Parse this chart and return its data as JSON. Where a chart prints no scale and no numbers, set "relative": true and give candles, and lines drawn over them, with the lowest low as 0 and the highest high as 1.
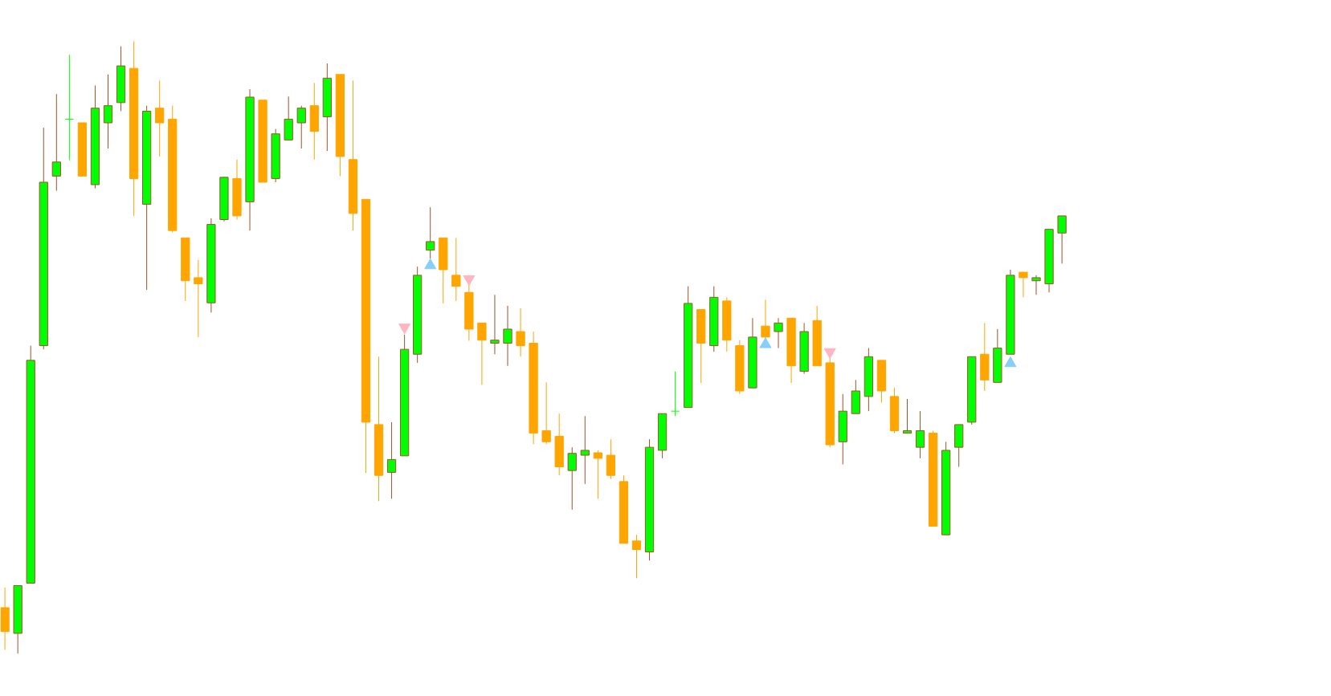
{
  "chart_data": {
    "type": "candlestick",
    "relative": true,
    "categories": [
      null,
      null,
      null,
      null,
      null,
      null,
      null,
      null,
      null,
      null,
      null,
      null,
      null,
      null,
      null,
      null,
      null,
      null,
      null,
      null,
      null,
      null,
      null,
      null,
      null,
      null,
      null,
      null,
      null,
      null,
      null,
      null,
      null,
      null,
      null,
      null,
      null,
      null,
      null,
      null,
      null,
      null,
      null,
      null,
      null,
      null,
      null,
      null,
      null,
      null,
      null,
      null,
      null,
      null,
      null,
      null,
      null,
      null,
      null,
      null,
      null,
      null,
      null,
      null,
      null,
      null,
      null,
      null,
      null,
      null,
      null,
      null,
      null,
      null,
      null,
      null,
      null,
      null,
      null,
      null,
      null,
      null,
      null
    ],
    "ohlc": [
      [
        0.075,
        0.108,
        0.006,
        0.036
      ],
      [
        0.033,
        0.111,
        0,
        0.111
      ],
      [
        0.115,
        0.503,
        0.115,
        0.479
      ],
      [
        0.503,
        0.859,
        0.497,
        0.77
      ],
      [
        0.78,
        0.914,
        0.756,
        0.803
      ],
      [
        0.873,
        0.978,
        0.806,
        0.873
      ],
      [
        0.867,
        0.867,
        0.78,
        0.78
      ],
      [
        0.766,
        0.928,
        0.76,
        0.891
      ],
      [
        0.867,
        0.946,
        0.825,
        0.895
      ],
      [
        0.9,
        0.992,
        0.886,
        0.96
      ],
      [
        0.956,
        1,
        0.715,
        0.776
      ],
      [
        0.734,
        0.895,
        0.594,
        0.886
      ],
      [
        0.891,
        0.936,
        0.812,
        0.867
      ],
      [
        0.873,
        0.895,
        0.688,
        0.691
      ],
      [
        0.679,
        0.679,
        0.576,
        0.609
      ],
      [
        0.614,
        0.643,
        0.517,
        0.604
      ],
      [
        0.573,
        0.711,
        0.557,
        0.701
      ],
      [
        0.709,
        0.778,
        0.706,
        0.778
      ],
      [
        0.776,
        0.807,
        0.709,
        0.715
      ],
      [
        0.738,
        0.922,
        0.691,
        0.909
      ],
      [
        0.904,
        0.904,
        0.77,
        0.77
      ],
      [
        0.776,
        0.857,
        0.77,
        0.849
      ],
      [
        0.839,
        0.91,
        0.839,
        0.873
      ],
      [
        0.867,
        0.895,
        0.825,
        0.891
      ],
      [
        0.895,
        0.932,
        0.807,
        0.853
      ],
      [
        0.877,
        0.964,
        0.821,
        0.94
      ],
      [
        0.946,
        0.946,
        0.78,
        0.812
      ],
      [
        0.807,
        0.936,
        0.691,
        0.719
      ],
      [
        0.742,
        0.742,
        0.295,
        0.378
      ],
      [
        0.374,
        0.485,
        0.249,
        0.291
      ],
      [
        0.296,
        0.378,
        0.253,
        0.317
      ],
      [
        0.323,
        0.521,
        0.323,
        0.497
      ],
      [
        0.489,
        0.632,
        0.475,
        0.618
      ],
      [
        0.659,
        0.729,
        0.645,
        0.673
      ],
      [
        0.679,
        0.679,
        0.572,
        0.627
      ],
      [
        0.618,
        0.679,
        0.576,
        0.6
      ],
      [
        0.59,
        0.604,
        0.511,
        0.53
      ],
      [
        0.54,
        0.54,
        0.439,
        0.512
      ],
      [
        0.507,
        0.586,
        0.489,
        0.512
      ],
      [
        0.507,
        0.568,
        0.47,
        0.53
      ],
      [
        0.526,
        0.564,
        0.485,
        0.503
      ],
      [
        0.507,
        0.526,
        0.342,
        0.36
      ],
      [
        0.364,
        0.443,
        0.342,
        0.346
      ],
      [
        0.355,
        0.392,
        0.291,
        0.305
      ],
      [
        0.299,
        0.337,
        0.235,
        0.327
      ],
      [
        0.324,
        0.388,
        0.277,
        0.332
      ],
      [
        0.328,
        0.332,
        0.253,
        0.319
      ],
      [
        0.324,
        0.35,
        0.285,
        0.291
      ],
      [
        0.281,
        0.291,
        0.18,
        0.18
      ],
      [
        0.184,
        0.194,
        0.123,
        0.17
      ],
      [
        0.166,
        0.35,
        0.152,
        0.337
      ],
      [
        0.332,
        0.392,
        0.319,
        0.392
      ],
      [
        0.396,
        0.461,
        0.388,
        0.396
      ],
      [
        0.402,
        0.6,
        0.402,
        0.572
      ],
      [
        0.562,
        0.562,
        0.442,
        0.507
      ],
      [
        0.503,
        0.6,
        0.493,
        0.582
      ],
      [
        0.576,
        0.582,
        0.493,
        0.512
      ],
      [
        0.503,
        0.512,
        0.424,
        0.429
      ],
      [
        0.434,
        0.548,
        0.434,
        0.517
      ],
      [
        0.535,
        0.578,
        0.512,
        0.517
      ],
      [
        0.526,
        0.548,
        0.499,
        0.54
      ],
      [
        0.548,
        0.548,
        0.442,
        0.47
      ],
      [
        0.461,
        0.54,
        0.457,
        0.526
      ],
      [
        0.544,
        0.568,
        0.47,
        0.47
      ],
      [
        0.475,
        0.485,
        0.337,
        0.341
      ],
      [
        0.346,
        0.424,
        0.309,
        0.396
      ],
      [
        0.392,
        0.447,
        0.392,
        0.429
      ],
      [
        0.42,
        0.499,
        0.396,
        0.485
      ],
      [
        0.479,
        0.479,
        0.41,
        0.429
      ],
      [
        0.42,
        0.434,
        0.36,
        0.364
      ],
      [
        0.36,
        0.416,
        0.36,
        0.364
      ],
      [
        0.337,
        0.396,
        0.319,
        0.364
      ],
      [
        0.36,
        0.364,
        0.208,
        0.208
      ],
      [
        0.194,
        0.346,
        0.194,
        0.332
      ],
      [
        0.337,
        0.374,
        0.305,
        0.374
      ],
      [
        0.378,
        0.485,
        0.374,
        0.485
      ],
      [
        0.489,
        0.54,
        0.429,
        0.447
      ],
      [
        0.443,
        0.53,
        0.443,
        0.499
      ],
      [
        0.489,
        0.627,
        0.489,
        0.618
      ],
      [
        0.623,
        0.623,
        0.582,
        0.614
      ],
      [
        0.609,
        0.618,
        0.586,
        0.614
      ],
      [
        0.604,
        0.693,
        0.59,
        0.693
      ],
      [
        0.687,
        0.715,
        0.637,
        0.715
      ]
    ],
    "colors": [
      "#ffa500",
      "#00ff00",
      "#00ff00",
      "#00ff00",
      "#00ff00",
      "#00ff00",
      "#ffa500",
      "#00ff00",
      "#00ff00",
      "#00ff00",
      "#ffa500",
      "#00ff00",
      "#ffa500",
      "#ffa500",
      "#ffa500",
      "#ffa500",
      "#00ff00",
      "#00ff00",
      "#ffa500",
      "#00ff00",
      "#ffa500",
      "#00ff00",
      "#00ff00",
      "#00ff00",
      "#ffa500",
      "#00ff00",
      "#ffa500",
      "#ffa500",
      "#ffa500",
      "#ffa500",
      "#00ff00",
      "#00ff00",
      "#00ff00",
      "#00ff00",
      "#ffa500",
      "#ffa500",
      "#ffa500",
      "#ffa500",
      "#00ff00",
      "#00ff00",
      "#ffa500",
      "#ffa500",
      "#ffa500",
      "#ffa500",
      "#00ff00",
      "#00ff00",
      "#ffa500",
      "#ffa500",
      "#ffa500",
      "#ffa500",
      "#00ff00",
      "#00ff00",
      "#00ff00",
      "#00ff00",
      "#ffa500",
      "#00ff00",
      "#ffa500",
      "#ffa500",
      "#00ff00",
      "#ffa500",
      "#00ff00",
      "#ffa500",
      "#00ff00",
      "#ffa500",
      "#ffa500",
      "#00ff00",
      "#00ff00",
      "#00ff00",
      "#ffa500",
      "#ffa500",
      "#00ff00",
      "#00ff00",
      "#ffa500",
      "#00ff00",
      "#00ff00",
      "#00ff00",
      "#ffa500",
      "#00ff00",
      "#00ff00",
      "#ffa500",
      "#00ff00",
      "#00ff00",
      "#00ff00"
    ],
    "series": [
      {
        "type": "scatter",
        "marker": "triangle",
        "color": "#87cefa",
        "values": [
          null,
          null,
          null,
          null,
          null,
          null,
          null,
          null,
          null,
          null,
          null,
          null,
          null,
          null,
          null,
          null,
          null,
          null,
          null,
          null,
          null,
          null,
          null,
          null,
          null,
          null,
          null,
          null,
          null,
          null,
          null,
          null,
          null,
          0.634,
          null,
          null,
          null,
          null,
          null,
          null,
          null,
          null,
          null,
          null,
          null,
          null,
          null,
          null,
          null,
          null,
          null,
          null,
          null,
          null,
          null,
          null,
          null,
          null,
          null,
          0.505,
          null,
          null,
          null,
          null,
          null,
          null,
          null,
          null,
          null,
          null,
          null,
          null,
          null,
          null,
          null,
          null,
          null,
          null,
          0.474,
          null,
          null,
          null,
          null
        ]
      },
      {
        "type": "scatter",
        "marker": "triangle",
        "color": "#ffb6c1",
        "values": [
          null,
          null,
          null,
          null,
          null,
          null,
          null,
          null,
          null,
          null,
          null,
          null,
          null,
          null,
          null,
          null,
          null,
          null,
          null,
          null,
          null,
          null,
          null,
          null,
          null,
          null,
          null,
          null,
          null,
          null,
          null,
          0.533,
          null,
          null,
          null,
          null,
          0.612,
          null,
          null,
          null,
          null,
          null,
          null,
          null,
          null,
          null,
          null,
          null,
          null,
          null,
          null,
          null,
          null,
          null,
          null,
          null,
          null,
          null,
          null,
          null,
          null,
          null,
          null,
          null,
          0.493,
          null,
          null,
          null,
          null,
          null,
          null,
          null,
          null,
          null,
          null,
          null,
          null,
          null,
          null,
          null,
          null,
          null,
          null
        ]
      }
    ]
  }
}
